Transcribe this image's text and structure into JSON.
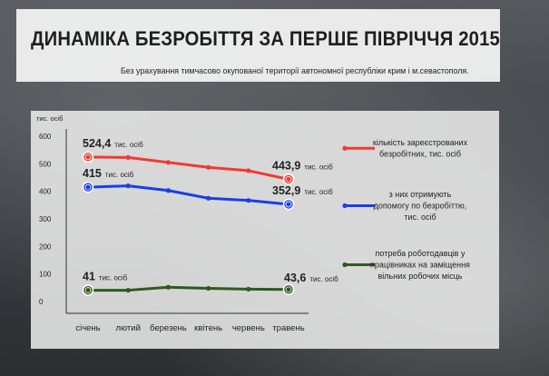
{
  "header": {
    "title": "ДИНАМІКА БЕЗРОБІТТЯ ЗА ПЕРШЕ ПІВРІЧЧЯ 2015",
    "subtitle": "Без урахування тимчасово окупованої території автономної республіки крим і м.севастополя."
  },
  "chart_data": {
    "type": "line",
    "ylabel": "тис. осіб",
    "ylim": [
      0,
      600
    ],
    "yticks": [
      "600",
      "500",
      "400",
      "300",
      "200",
      "100",
      "0"
    ],
    "categories": [
      "січень",
      "лютий",
      "березень",
      "квітень",
      "червень",
      "травень"
    ],
    "grid": false,
    "legend_position": "right",
    "series": [
      {
        "name": "кількість зареєстрованих безробітних, тис. осіб",
        "legend_lines": [
          "кількість зареєстрованих",
          "безробітних, тис. осіб"
        ],
        "color": "#f23a2e",
        "values": [
          524.4,
          523,
          505,
          487,
          475,
          443.9
        ],
        "start_label": {
          "value": "524,4",
          "unit": "тис. осіб"
        },
        "end_label": {
          "value": "443,9",
          "unit": "тис. осіб"
        }
      },
      {
        "name": "з них отримують допомогу по безробіттю, тис. осіб",
        "legend_lines": [
          "з них отримують",
          "допомогу по безробіттю,",
          "тис. осіб"
        ],
        "color": "#1a3fe8",
        "values": [
          415,
          420,
          403,
          375,
          367,
          352.9
        ],
        "start_label": {
          "value": "415",
          "unit": "тис. осіб"
        },
        "end_label": {
          "value": "352,9",
          "unit": "тис. осіб"
        }
      },
      {
        "name": "потреба роботодавців у працівниках на заміщення вільних робочих місць",
        "legend_lines": [
          "потреба роботодавців у",
          "працівниках на заміщення",
          "вільних робочих місць"
        ],
        "color": "#2f5a1e",
        "values": [
          41,
          41,
          52,
          48,
          45,
          43.6
        ],
        "start_label": {
          "value": "41",
          "unit": "тис. осіб"
        },
        "end_label": {
          "value": "43,6",
          "unit": "тис. осіб"
        }
      }
    ]
  }
}
